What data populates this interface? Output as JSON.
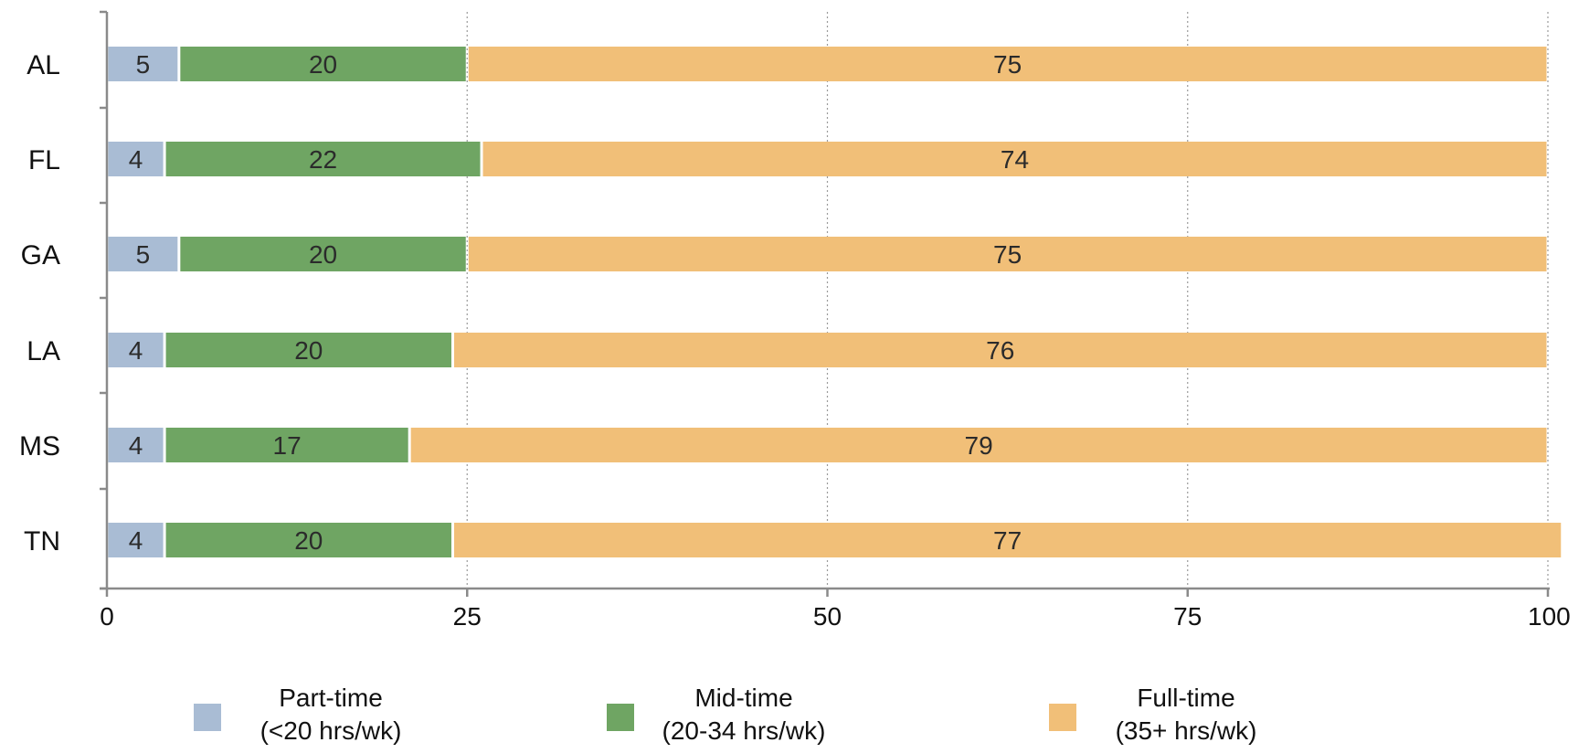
{
  "chart_data": {
    "type": "bar",
    "orientation": "horizontal",
    "stacked": true,
    "categories": [
      "AL",
      "FL",
      "GA",
      "LA",
      "MS",
      "TN"
    ],
    "series": [
      {
        "name": "Part-time",
        "legend_lines": [
          "Part-time",
          "(<20 hrs/wk)"
        ],
        "color": "#A9BCD4",
        "values": [
          5,
          4,
          5,
          4,
          4,
          4
        ]
      },
      {
        "name": "Mid-time",
        "legend_lines": [
          "Mid-time",
          "(20-34 hrs/wk)"
        ],
        "color": "#6FA563",
        "values": [
          20,
          22,
          20,
          20,
          17,
          20
        ]
      },
      {
        "name": "Full-time",
        "legend_lines": [
          "Full-time",
          "(35+ hrs/wk)"
        ],
        "color": "#F1BF78",
        "values": [
          75,
          74,
          75,
          76,
          79,
          77
        ]
      }
    ],
    "xlim": [
      0,
      100
    ],
    "xticks": [
      0,
      25,
      50,
      75,
      100
    ],
    "xtick_labels": [
      "0",
      "25",
      "50",
      "75",
      "100"
    ],
    "grid": "vertical dotted",
    "legend_position": "bottom",
    "data_labels": true
  }
}
